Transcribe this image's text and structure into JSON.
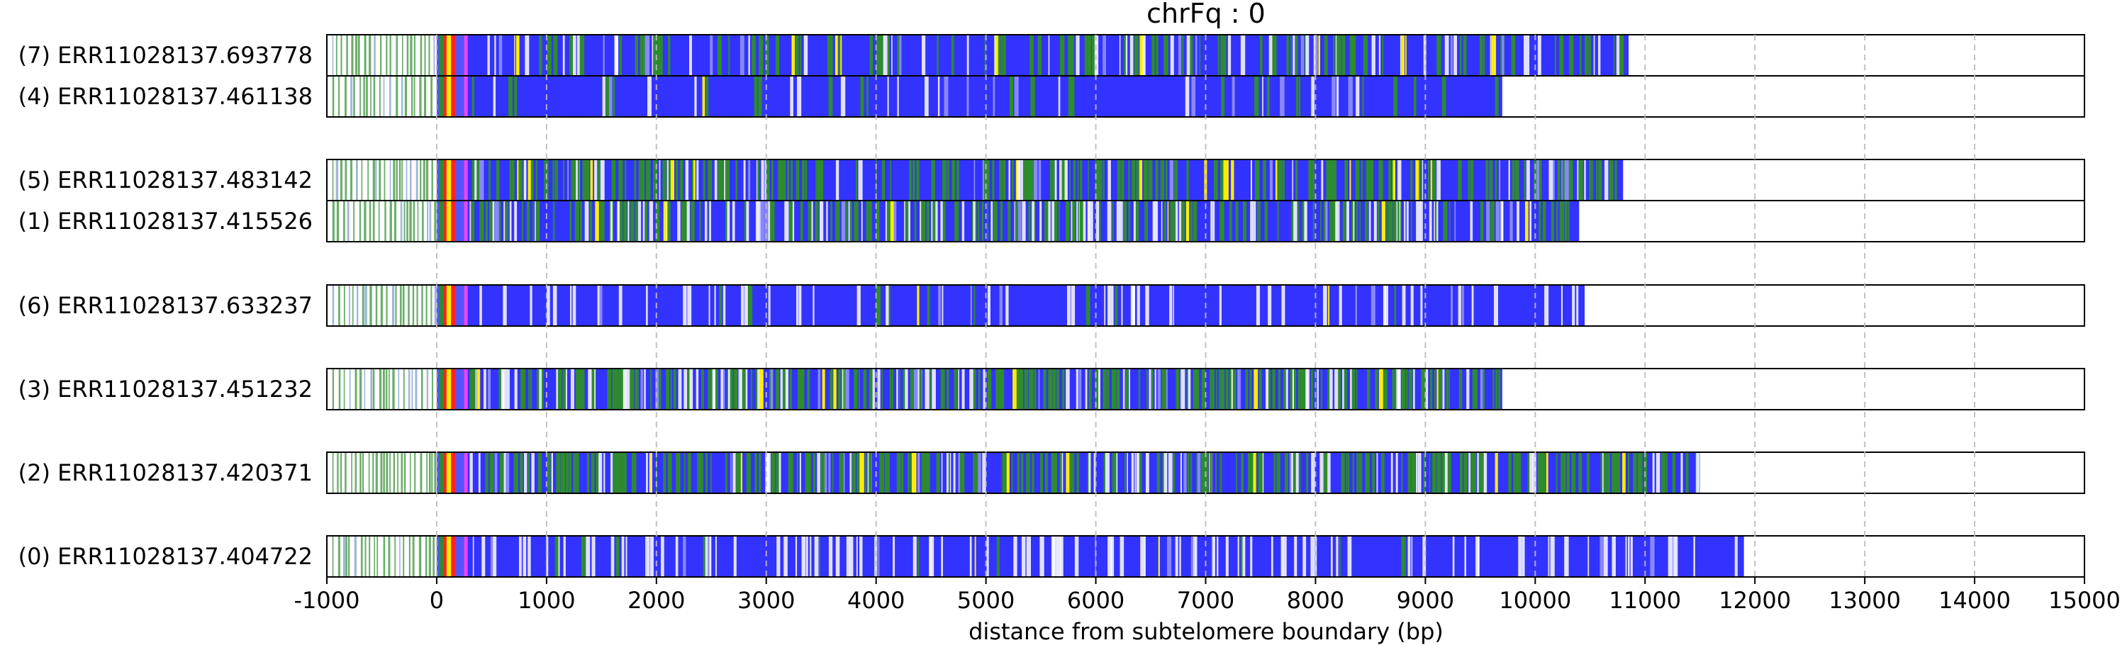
{
  "chart_data": {
    "type": "read-alignment-tracks",
    "title": "chrFq : 0",
    "xlabel": "distance from subtelomere boundary (bp)",
    "xlim": [
      -1000,
      15000
    ],
    "xticks": [
      -1000,
      0,
      1000,
      2000,
      3000,
      4000,
      5000,
      6000,
      7000,
      8000,
      9000,
      10000,
      11000,
      12000,
      13000,
      14000,
      15000
    ],
    "xtick_labels": [
      "-1000",
      "0",
      "1000",
      "2000",
      "3000",
      "4000",
      "5000",
      "6000",
      "7000",
      "8000",
      "9000",
      "10000",
      "11000",
      "12000",
      "13000",
      "14000",
      "15000"
    ],
    "grid": "vertical dashed at each x tick",
    "colors": {
      "telomere_repeat": "#3333ff",
      "variant_repeat": "#2e8b2e",
      "yellow_marker": "#ffee00",
      "red_marker": "#ff2222",
      "magenta_marker": "#ee44ee",
      "frame": "#000000",
      "grid": "#bbbbbb"
    },
    "groups": [
      {
        "reads": [
          {
            "label": "(7) ERR11028137.693778",
            "end": 10850,
            "greenness": 0.25,
            "whiteness": 0.18
          },
          {
            "label": "(4) ERR11028137.461138",
            "end": 9700,
            "greenness": 0.08,
            "whiteness": 0.05
          }
        ]
      },
      {
        "reads": [
          {
            "label": "(5) ERR11028137.483142",
            "end": 10800,
            "greenness": 0.45,
            "whiteness": 0.12
          },
          {
            "label": "(1) ERR11028137.415526",
            "end": 10400,
            "greenness": 0.4,
            "whiteness": 0.25
          }
        ]
      },
      {
        "reads": [
          {
            "label": "(6) ERR11028137.633237",
            "end": 10450,
            "greenness": 0.03,
            "whiteness": 0.15
          }
        ]
      },
      {
        "reads": [
          {
            "label": "(3) ERR11028137.451232",
            "end": 9700,
            "greenness": 0.55,
            "whiteness": 0.18
          }
        ]
      },
      {
        "reads": [
          {
            "label": "(2) ERR11028137.420371",
            "end": 11500,
            "greenness": 0.5,
            "whiteness": 0.12
          }
        ]
      },
      {
        "reads": [
          {
            "label": "(0) ERR11028137.404722",
            "end": 11900,
            "greenness": 0.03,
            "whiteness": 0.2
          }
        ]
      }
    ]
  }
}
